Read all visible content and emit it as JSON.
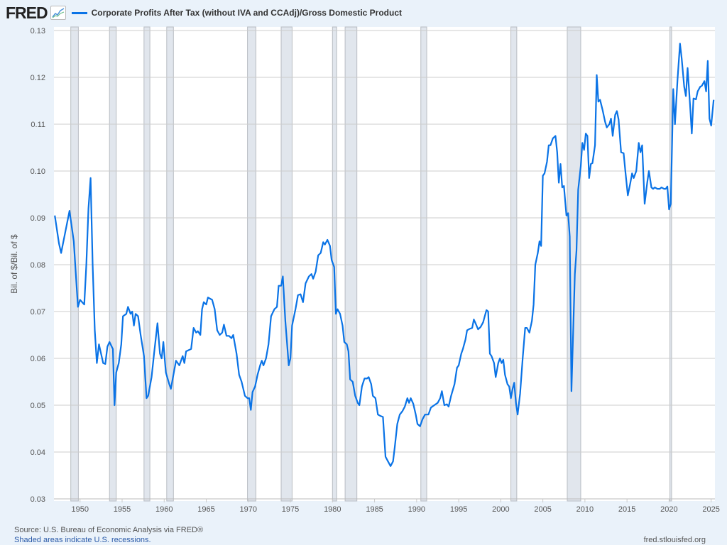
{
  "header": {
    "logo": "FRED",
    "series_title": "Corporate Profits After Tax (without IVA and CCAdj)/Gross Domestic Product"
  },
  "footer": {
    "source": "Source: U.S. Bureau of Economic Analysis via FRED®",
    "recession_note": "Shaded areas indicate U.S. recessions.",
    "site": "fred.stlouisfed.org"
  },
  "colors": {
    "line": "#0a73e6",
    "recession": "#e1e6ed",
    "background": "#eaf2fa"
  },
  "chart_data": {
    "type": "line",
    "title": "Corporate Profits After Tax (without IVA and CCAdj)/Gross Domestic Product",
    "xlabel": "",
    "ylabel": "Bil. of $/Bil. of $",
    "xlim": [
      1946.9,
      2025.45
    ],
    "ylim": [
      0.03,
      0.13
    ],
    "grid": "horizontal",
    "legend": "top-left",
    "yticks": [
      "0.03",
      "0.04",
      "0.05",
      "0.06",
      "0.07",
      "0.08",
      "0.09",
      "0.10",
      "0.11",
      "0.12",
      "0.13"
    ],
    "xticks": [
      "1950",
      "1955",
      "1960",
      "1965",
      "1970",
      "1975",
      "1980",
      "1985",
      "1990",
      "1995",
      "2000",
      "2005",
      "2010",
      "2015",
      "2020",
      "2025"
    ],
    "recessions": [
      [
        1948.9,
        1949.8
      ],
      [
        1953.5,
        1954.3
      ],
      [
        1957.6,
        1958.3
      ],
      [
        1960.3,
        1961.1
      ],
      [
        1969.9,
        1970.9
      ],
      [
        1973.9,
        1975.2
      ],
      [
        1980.0,
        1980.5
      ],
      [
        1981.5,
        1982.9
      ],
      [
        1990.5,
        1991.2
      ],
      [
        2001.2,
        2001.9
      ],
      [
        2007.9,
        2009.5
      ],
      [
        2020.1,
        2020.3
      ]
    ],
    "x": [
      1947.0,
      1947.5,
      1947.75,
      1948.25,
      1948.75,
      1949.25,
      1949.5,
      1949.75,
      1950.0,
      1950.5,
      1950.75,
      1951.0,
      1951.25,
      1951.5,
      1951.75,
      1952.0,
      1952.25,
      1952.75,
      1953.0,
      1953.25,
      1953.5,
      1953.9,
      1954.1,
      1954.3,
      1954.6,
      1954.9,
      1955.1,
      1955.5,
      1955.7,
      1956.0,
      1956.2,
      1956.4,
      1956.6,
      1956.9,
      1957.2,
      1957.6,
      1957.9,
      1958.1,
      1958.5,
      1958.8,
      1959.2,
      1959.5,
      1959.7,
      1959.9,
      1960.2,
      1960.6,
      1960.8,
      1961.0,
      1961.4,
      1961.8,
      1962.2,
      1962.4,
      1962.6,
      1963.2,
      1963.5,
      1963.8,
      1964.0,
      1964.3,
      1964.5,
      1964.7,
      1965.0,
      1965.2,
      1965.7,
      1966.0,
      1966.3,
      1966.6,
      1966.9,
      1967.1,
      1967.4,
      1967.7,
      1968.0,
      1968.2,
      1968.6,
      1968.9,
      1969.2,
      1969.6,
      1969.9,
      1970.1,
      1970.3,
      1970.5,
      1970.8,
      1971.1,
      1971.4,
      1971.6,
      1971.8,
      1972.1,
      1972.4,
      1972.7,
      1973.1,
      1973.4,
      1973.6,
      1973.9,
      1974.1,
      1974.4,
      1974.8,
      1975.0,
      1975.2,
      1975.6,
      1975.9,
      1976.2,
      1976.5,
      1976.8,
      1977.2,
      1977.5,
      1977.7,
      1978.0,
      1978.3,
      1978.6,
      1978.9,
      1979.1,
      1979.4,
      1979.7,
      1979.9,
      1980.2,
      1980.4,
      1980.6,
      1980.9,
      1981.2,
      1981.4,
      1981.7,
      1981.9,
      1982.1,
      1982.4,
      1982.7,
      1983.0,
      1983.2,
      1983.5,
      1983.8,
      1984.1,
      1984.3,
      1984.6,
      1984.8,
      1985.1,
      1985.4,
      1985.7,
      1986.0,
      1986.3,
      1986.6,
      1986.9,
      1987.2,
      1987.4,
      1987.7,
      1988.0,
      1988.3,
      1988.6,
      1988.9,
      1989.1,
      1989.3,
      1989.6,
      1989.9,
      1990.1,
      1990.4,
      1990.7,
      1991.0,
      1991.4,
      1991.7,
      1992.1,
      1992.5,
      1992.8,
      1993.0,
      1993.3,
      1993.6,
      1993.8,
      1994.1,
      1994.5,
      1994.8,
      1995.0,
      1995.3,
      1995.5,
      1995.8,
      1996.0,
      1996.3,
      1996.6,
      1996.8,
      1997.0,
      1997.3,
      1997.6,
      1997.9,
      1998.1,
      1998.3,
      1998.5,
      1998.7,
      1998.9,
      1999.2,
      1999.4,
      1999.7,
      1999.9,
      2000.1,
      2000.3,
      2000.5,
      2000.8,
      2001.0,
      2001.2,
      2001.4,
      2001.6,
      2001.8,
      2002.0,
      2002.3,
      2002.6,
      2002.9,
      2003.1,
      2003.4,
      2003.7,
      2003.9,
      2004.1,
      2004.4,
      2004.6,
      2004.8,
      2005.0,
      2005.2,
      2005.5,
      2005.7,
      2005.9,
      2006.2,
      2006.5,
      2006.7,
      2006.9,
      2007.1,
      2007.3,
      2007.5,
      2007.8,
      2008.0,
      2008.2,
      2008.4,
      2008.8,
      2009.0,
      2009.2,
      2009.5,
      2009.7,
      2009.9,
      2010.1,
      2010.3,
      2010.5,
      2010.7,
      2010.9,
      2011.2,
      2011.4,
      2011.6,
      2011.8,
      2012.1,
      2012.4,
      2012.6,
      2012.9,
      2013.1,
      2013.3,
      2013.6,
      2013.8,
      2014.0,
      2014.3,
      2014.6,
      2014.8,
      2015.1,
      2015.4,
      2015.6,
      2015.8,
      2016.1,
      2016.4,
      2016.6,
      2016.8,
      2017.1,
      2017.4,
      2017.6,
      2017.9,
      2018.1,
      2018.3,
      2018.6,
      2018.9,
      2019.1,
      2019.4,
      2019.6,
      2019.8,
      2020.0,
      2020.2,
      2020.5,
      2020.7,
      2021.0,
      2021.3,
      2021.5,
      2021.8,
      2022.0,
      2022.2,
      2022.5,
      2022.7,
      2022.9,
      2023.2,
      2023.4,
      2023.7,
      2023.9,
      2024.2,
      2024.4,
      2024.6,
      2024.8,
      2025.0,
      2025.3
    ],
    "series": [
      {
        "name": "Corporate Profits After Tax (without IVA and CCAdj)/Gross Domestic Product",
        "values": [
          0.0905,
          0.0845,
          0.0825,
          0.087,
          0.0915,
          0.085,
          0.078,
          0.071,
          0.0725,
          0.0715,
          0.08,
          0.092,
          0.0985,
          0.08,
          0.066,
          0.059,
          0.063,
          0.059,
          0.0588,
          0.0625,
          0.0635,
          0.062,
          0.05,
          0.057,
          0.059,
          0.063,
          0.069,
          0.0695,
          0.071,
          0.0695,
          0.07,
          0.067,
          0.0695,
          0.069,
          0.065,
          0.0605,
          0.0515,
          0.052,
          0.056,
          0.061,
          0.0675,
          0.061,
          0.06,
          0.0635,
          0.057,
          0.0545,
          0.0535,
          0.0555,
          0.0595,
          0.0585,
          0.0605,
          0.059,
          0.0615,
          0.062,
          0.0665,
          0.0655,
          0.0658,
          0.065,
          0.0705,
          0.072,
          0.0715,
          0.073,
          0.0725,
          0.0705,
          0.066,
          0.065,
          0.0655,
          0.0672,
          0.0648,
          0.0648,
          0.0643,
          0.065,
          0.061,
          0.0565,
          0.055,
          0.052,
          0.0515,
          0.0515,
          0.049,
          0.0528,
          0.054,
          0.0565,
          0.0585,
          0.0595,
          0.0585,
          0.06,
          0.063,
          0.069,
          0.0705,
          0.071,
          0.0755,
          0.0755,
          0.0775,
          0.068,
          0.0585,
          0.06,
          0.067,
          0.0705,
          0.0735,
          0.0737,
          0.072,
          0.076,
          0.0775,
          0.078,
          0.077,
          0.0785,
          0.082,
          0.0825,
          0.0848,
          0.0843,
          0.0853,
          0.084,
          0.081,
          0.0795,
          0.0695,
          0.0705,
          0.0695,
          0.067,
          0.0635,
          0.063,
          0.0615,
          0.0555,
          0.055,
          0.052,
          0.0505,
          0.05,
          0.054,
          0.0557,
          0.0557,
          0.056,
          0.0545,
          0.052,
          0.0515,
          0.048,
          0.0477,
          0.0475,
          0.039,
          0.038,
          0.037,
          0.038,
          0.041,
          0.046,
          0.048,
          0.0487,
          0.0497,
          0.0515,
          0.0505,
          0.0515,
          0.0503,
          0.048,
          0.046,
          0.0455,
          0.047,
          0.048,
          0.048,
          0.0495,
          0.05,
          0.0505,
          0.0515,
          0.053,
          0.05,
          0.0502,
          0.0497,
          0.052,
          0.0545,
          0.058,
          0.0585,
          0.061,
          0.062,
          0.064,
          0.066,
          0.0663,
          0.0665,
          0.0683,
          0.0675,
          0.0662,
          0.0667,
          0.0677,
          0.069,
          0.0703,
          0.07,
          0.061,
          0.0605,
          0.059,
          0.056,
          0.059,
          0.06,
          0.059,
          0.0597,
          0.0565,
          0.0545,
          0.054,
          0.0515,
          0.0535,
          0.0548,
          0.0505,
          0.048,
          0.0525,
          0.06,
          0.0665,
          0.0665,
          0.0655,
          0.068,
          0.0715,
          0.08,
          0.0825,
          0.085,
          0.084,
          0.099,
          0.0995,
          0.102,
          0.1055,
          0.1055,
          0.107,
          0.1075,
          0.104,
          0.0975,
          0.1015,
          0.0965,
          0.0968,
          0.0905,
          0.091,
          0.086,
          0.053,
          0.078,
          0.083,
          0.096,
          0.101,
          0.106,
          0.1045,
          0.108,
          0.1075,
          0.0985,
          0.1015,
          0.1017,
          0.1055,
          0.1205,
          0.1148,
          0.1152,
          0.113,
          0.1105,
          0.1093,
          0.11,
          0.1112,
          0.1075,
          0.112,
          0.1128,
          0.111,
          0.104,
          0.1038,
          0.1,
          0.0948,
          0.0975,
          0.0995,
          0.0985,
          0.1,
          0.106,
          0.104,
          0.1055,
          0.093,
          0.0975,
          0.1,
          0.0965,
          0.0962,
          0.0965,
          0.0962,
          0.0962,
          0.0965,
          0.0962,
          0.0962,
          0.0967,
          0.0918,
          0.093,
          0.1175,
          0.11,
          0.1195,
          0.1272,
          0.124,
          0.118,
          0.116,
          0.122,
          0.114,
          0.108,
          0.1155,
          0.1153,
          0.117,
          0.118,
          0.1182,
          0.1192,
          0.117,
          0.1235,
          0.1112,
          0.1097,
          0.1152
        ]
      }
    ]
  }
}
